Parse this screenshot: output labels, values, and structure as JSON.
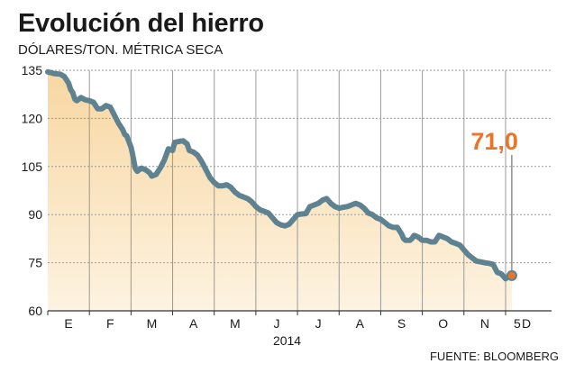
{
  "header": {
    "title": "Evolución del hierro",
    "subtitle": "DÓLARES/TON. MÉTRICA SECA"
  },
  "footer": {
    "source": "FUENTE: BLOOMBERG"
  },
  "colors": {
    "line": "#5f8290",
    "fill_top": "#f8d7a2",
    "fill_bottom": "#fdf3e1",
    "accent": "#e9742b",
    "grid": "#999999",
    "axis": "#333333"
  },
  "chart_data": {
    "type": "area",
    "title": "Evolución del hierro",
    "ylabel": "DÓLARES/TON. MÉTRICA SECA",
    "xlabel": "2014",
    "ylim": [
      60,
      135
    ],
    "yticks": [
      60,
      75,
      90,
      105,
      120,
      135
    ],
    "xlim": [
      0,
      11.15
    ],
    "x_ticks": [
      {
        "label": "E",
        "x": 0
      },
      {
        "label": "F",
        "x": 1
      },
      {
        "label": "M",
        "x": 2
      },
      {
        "label": "A",
        "x": 3
      },
      {
        "label": "M",
        "x": 4
      },
      {
        "label": "J",
        "x": 5
      },
      {
        "label": "J",
        "x": 6
      },
      {
        "label": "A",
        "x": 7
      },
      {
        "label": "S",
        "x": 8
      },
      {
        "label": "O",
        "x": 9
      },
      {
        "label": "N",
        "x": 10
      },
      {
        "label": "D",
        "x": 11
      }
    ],
    "year_label": "2014",
    "grid": "horizontal dotted, vertical solid",
    "series": [
      {
        "values": [
          [
            0.0,
            134.5
          ],
          [
            0.15,
            134.0
          ],
          [
            0.3,
            133.8
          ],
          [
            0.4,
            133.0
          ],
          [
            0.5,
            131.0
          ],
          [
            0.55,
            129.0
          ],
          [
            0.6,
            128.0
          ],
          [
            0.65,
            126.0
          ],
          [
            0.7,
            125.5
          ],
          [
            0.8,
            126.5
          ],
          [
            0.9,
            125.8
          ],
          [
            1.0,
            125.5
          ],
          [
            1.1,
            125.0
          ],
          [
            1.2,
            123.0
          ],
          [
            1.3,
            123.0
          ],
          [
            1.4,
            124.0
          ],
          [
            1.5,
            123.5
          ],
          [
            1.6,
            121.0
          ],
          [
            1.7,
            118.5
          ],
          [
            1.8,
            116.5
          ],
          [
            1.85,
            115.0
          ],
          [
            1.9,
            114.5
          ],
          [
            2.0,
            111.0
          ],
          [
            2.05,
            108.0
          ],
          [
            2.1,
            104.5
          ],
          [
            2.15,
            103.5
          ],
          [
            2.25,
            104.5
          ],
          [
            2.35,
            104.0
          ],
          [
            2.45,
            103.0
          ],
          [
            2.5,
            102.0
          ],
          [
            2.6,
            102.5
          ],
          [
            2.7,
            104.5
          ],
          [
            2.8,
            107.0
          ],
          [
            2.9,
            110.5
          ],
          [
            3.0,
            110.0
          ],
          [
            3.05,
            112.5
          ],
          [
            3.15,
            112.8
          ],
          [
            3.25,
            113.0
          ],
          [
            3.35,
            112.0
          ],
          [
            3.4,
            110.0
          ],
          [
            3.5,
            109.5
          ],
          [
            3.6,
            108.5
          ],
          [
            3.7,
            106.5
          ],
          [
            3.8,
            104.0
          ],
          [
            3.9,
            101.5
          ],
          [
            4.0,
            100.0
          ],
          [
            4.1,
            99.0
          ],
          [
            4.2,
            99.0
          ],
          [
            4.3,
            99.3
          ],
          [
            4.4,
            98.5
          ],
          [
            4.5,
            97.0
          ],
          [
            4.6,
            96.0
          ],
          [
            4.7,
            95.5
          ],
          [
            4.8,
            95.0
          ],
          [
            4.9,
            94.0
          ],
          [
            5.0,
            92.5
          ],
          [
            5.05,
            92.0
          ],
          [
            5.1,
            91.5
          ],
          [
            5.2,
            91.0
          ],
          [
            5.3,
            90.5
          ],
          [
            5.4,
            89.0
          ],
          [
            5.5,
            87.5
          ],
          [
            5.6,
            86.8
          ],
          [
            5.7,
            86.5
          ],
          [
            5.8,
            87.0
          ],
          [
            5.9,
            88.5
          ],
          [
            6.0,
            90.0
          ],
          [
            6.1,
            90.2
          ],
          [
            6.2,
            90.3
          ],
          [
            6.3,
            92.5
          ],
          [
            6.4,
            93.0
          ],
          [
            6.5,
            93.5
          ],
          [
            6.6,
            94.5
          ],
          [
            6.7,
            95.0
          ],
          [
            6.8,
            93.5
          ],
          [
            6.9,
            92.5
          ],
          [
            7.0,
            92.0
          ],
          [
            7.1,
            92.3
          ],
          [
            7.2,
            92.5
          ],
          [
            7.3,
            93.0
          ],
          [
            7.4,
            93.5
          ],
          [
            7.5,
            93.0
          ],
          [
            7.6,
            92.0
          ],
          [
            7.7,
            90.5
          ],
          [
            7.8,
            90.0
          ],
          [
            7.9,
            89.0
          ],
          [
            8.0,
            88.5
          ],
          [
            8.1,
            87.5
          ],
          [
            8.2,
            86.5
          ],
          [
            8.3,
            86.0
          ],
          [
            8.4,
            86.0
          ],
          [
            8.5,
            84.0
          ],
          [
            8.55,
            82.5
          ],
          [
            8.6,
            82.0
          ],
          [
            8.7,
            82.0
          ],
          [
            8.75,
            82.5
          ],
          [
            8.8,
            83.5
          ],
          [
            8.85,
            83.3
          ],
          [
            8.9,
            83.0
          ],
          [
            9.0,
            82.0
          ],
          [
            9.1,
            82.0
          ],
          [
            9.2,
            81.5
          ],
          [
            9.3,
            81.5
          ],
          [
            9.4,
            83.5
          ],
          [
            9.5,
            83.0
          ],
          [
            9.6,
            82.5
          ],
          [
            9.7,
            81.5
          ],
          [
            9.8,
            81.0
          ],
          [
            9.9,
            80.5
          ],
          [
            10.0,
            79.0
          ],
          [
            10.1,
            77.5
          ],
          [
            10.2,
            76.5
          ],
          [
            10.3,
            75.5
          ],
          [
            10.5,
            75.0
          ],
          [
            10.6,
            74.8
          ],
          [
            10.7,
            74.5
          ],
          [
            10.8,
            72.0
          ],
          [
            10.9,
            71.5
          ],
          [
            11.0,
            70.0
          ],
          [
            11.1,
            71.0
          ],
          [
            11.15,
            71.0
          ]
        ]
      }
    ],
    "annotations": [
      {
        "text": "71,0",
        "x": 11.15,
        "y": 71.0
      }
    ]
  }
}
